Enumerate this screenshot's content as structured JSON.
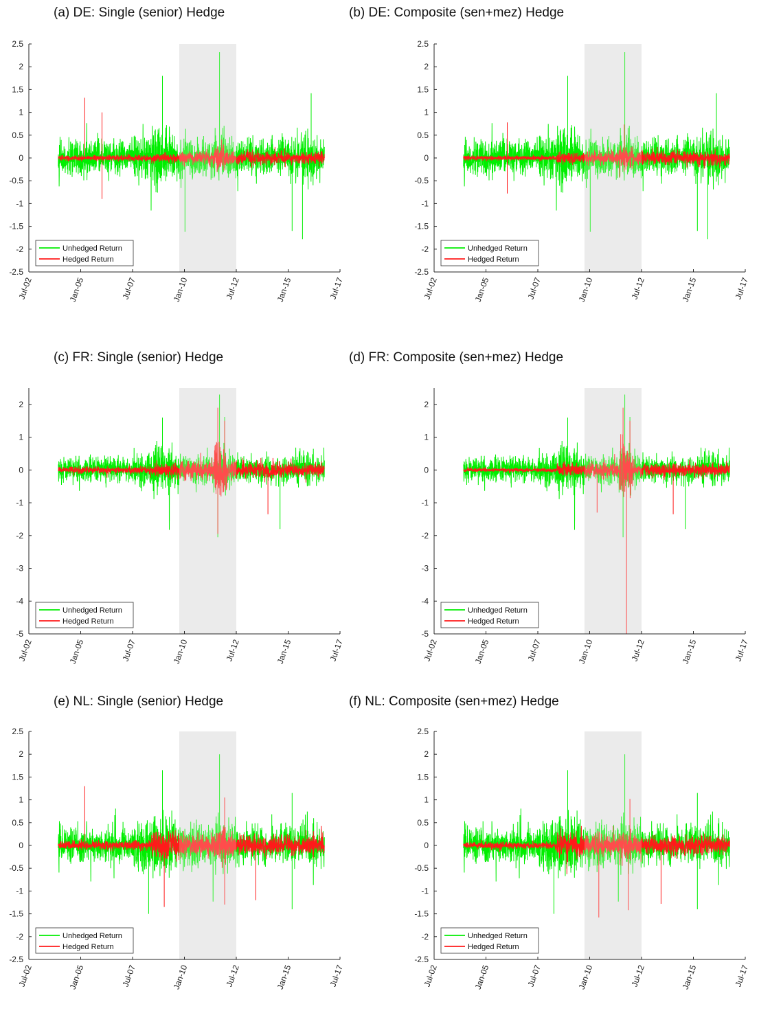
{
  "colors": {
    "unhedged": "#00ee00",
    "hedged": "#ff1a1a",
    "shade": "#e6e6e6",
    "axis": "#262626"
  },
  "x_ticks": [
    "Jul-02",
    "Jan-05",
    "Jul-07",
    "Jan-10",
    "Jul-12",
    "Jan-15",
    "Jul-17"
  ],
  "legend": {
    "unhedged_label": "Unhedged Return",
    "hedged_label": "Hedged Return",
    "placement": "bottom-left"
  },
  "chart_data": [
    {
      "type": "line",
      "title": "(a) DE: Single (senior) Hedge",
      "x_range": [
        "Jul-02",
        "Jul-17"
      ],
      "ylim": [
        -2.5,
        2.5
      ],
      "yticks": [
        "-2.5",
        "-2",
        "-1.5",
        "-1",
        "-0.5",
        "0",
        "0.5",
        "1",
        "1.5",
        "2",
        "2.5"
      ],
      "shaded_period": [
        "Oct-09",
        "Jul-12"
      ],
      "series": [
        {
          "name": "Unhedged Return",
          "peaks": [
            {
              "x": "Sep-11",
              "y": 2.32
            },
            {
              "x": "Dec-08",
              "y": 1.8
            },
            {
              "x": "Feb-16",
              "y": 1.42
            }
          ],
          "troughs": [
            {
              "x": "Jan-10",
              "y": -1.62
            },
            {
              "x": "Sep-15",
              "y": -1.78
            },
            {
              "x": "Mar-15",
              "y": -1.6
            }
          ]
        },
        {
          "name": "Hedged Return",
          "peaks": [
            {
              "x": "Mar-05",
              "y": 1.32
            },
            {
              "x": "Jan-06",
              "y": 1.0
            }
          ],
          "troughs": [
            {
              "x": "Jan-06",
              "y": -0.9
            }
          ]
        }
      ]
    },
    {
      "type": "line",
      "title": "(b) DE: Composite (sen+mez) Hedge",
      "x_range": [
        "Jul-02",
        "Jul-17"
      ],
      "ylim": [
        -2.5,
        2.5
      ],
      "yticks": [
        "-2.5",
        "-2",
        "-1.5",
        "-1",
        "-0.5",
        "0",
        "0.5",
        "1",
        "1.5",
        "2",
        "2.5"
      ],
      "shaded_period": [
        "Oct-09",
        "Jul-12"
      ],
      "series": [
        {
          "name": "Unhedged Return",
          "peaks": [
            {
              "x": "Sep-11",
              "y": 2.32
            },
            {
              "x": "Dec-08",
              "y": 1.8
            },
            {
              "x": "Feb-16",
              "y": 1.42
            }
          ],
          "troughs": [
            {
              "x": "Jan-10",
              "y": -1.62
            },
            {
              "x": "Sep-15",
              "y": -1.78
            },
            {
              "x": "Mar-15",
              "y": -1.6
            }
          ]
        },
        {
          "name": "Hedged Return",
          "peaks": [
            {
              "x": "Jan-06",
              "y": 0.78
            }
          ],
          "troughs": [
            {
              "x": "Jan-06",
              "y": -0.78
            }
          ]
        }
      ]
    },
    {
      "type": "line",
      "title": "(c) FR: Single (senior) Hedge",
      "x_range": [
        "Jul-02",
        "Jul-17"
      ],
      "ylim": [
        -5,
        2.5
      ],
      "yticks": [
        "-5",
        "-4",
        "-3",
        "-2",
        "-1",
        "0",
        "1",
        "2"
      ],
      "shaded_period": [
        "Oct-09",
        "Jul-12"
      ],
      "series": [
        {
          "name": "Unhedged Return",
          "peaks": [
            {
              "x": "Sep-11",
              "y": 2.3
            },
            {
              "x": "Dec-11",
              "y": 1.62
            },
            {
              "x": "Dec-08",
              "y": 1.6
            }
          ],
          "troughs": [
            {
              "x": "Aug-11",
              "y": -2.05
            },
            {
              "x": "Aug-14",
              "y": -1.8
            },
            {
              "x": "Apr-09",
              "y": -1.55
            }
          ]
        },
        {
          "name": "Hedged Return",
          "peaks": [
            {
              "x": "Aug-11",
              "y": 1.9
            },
            {
              "x": "Dec-11",
              "y": 1.5
            }
          ],
          "troughs": [
            {
              "x": "Aug-11",
              "y": -1.95
            },
            {
              "x": "Jan-14",
              "y": -1.35
            }
          ]
        }
      ]
    },
    {
      "type": "line",
      "title": "(d) FR: Composite (sen+mez) Hedge",
      "x_range": [
        "Jul-02",
        "Jul-17"
      ],
      "ylim": [
        -5,
        2.5
      ],
      "yticks": [
        "-5",
        "-4",
        "-3",
        "-2",
        "-1",
        "0",
        "1",
        "2"
      ],
      "shaded_period": [
        "Oct-09",
        "Jul-12"
      ],
      "series": [
        {
          "name": "Unhedged Return",
          "peaks": [
            {
              "x": "Sep-11",
              "y": 2.3
            },
            {
              "x": "Dec-11",
              "y": 1.62
            },
            {
              "x": "Dec-08",
              "y": 1.6
            }
          ],
          "troughs": [
            {
              "x": "Aug-11",
              "y": -2.05
            },
            {
              "x": "Aug-14",
              "y": -1.8
            },
            {
              "x": "Apr-09",
              "y": -1.55
            }
          ]
        },
        {
          "name": "Hedged Return",
          "peaks": [
            {
              "x": "Aug-11",
              "y": 1.9
            },
            {
              "x": "Dec-11",
              "y": 1.5
            }
          ],
          "troughs": [
            {
              "x": "Oct-11",
              "y": -5.0
            },
            {
              "x": "Jan-14",
              "y": -1.35
            },
            {
              "x": "May-10",
              "y": -1.3
            }
          ]
        }
      ]
    },
    {
      "type": "line",
      "title": "(e) NL: Single (senior) Hedge",
      "x_range": [
        "Jul-02",
        "Jul-17"
      ],
      "ylim": [
        -2.5,
        2.5
      ],
      "yticks": [
        "-2.5",
        "-2",
        "-1.5",
        "-1",
        "-0.5",
        "0",
        "0.5",
        "1",
        "1.5",
        "2",
        "2.5"
      ],
      "shaded_period": [
        "Oct-09",
        "Jul-12"
      ],
      "series": [
        {
          "name": "Unhedged Return",
          "peaks": [
            {
              "x": "Sep-11",
              "y": 2.0
            },
            {
              "x": "Dec-08",
              "y": 1.65
            },
            {
              "x": "Mar-15",
              "y": 1.15
            }
          ],
          "troughs": [
            {
              "x": "Apr-08",
              "y": -1.5
            },
            {
              "x": "Mar-15",
              "y": -1.4
            }
          ]
        },
        {
          "name": "Hedged Return",
          "peaks": [
            {
              "x": "Mar-05",
              "y": 1.3
            },
            {
              "x": "Dec-11",
              "y": 1.05
            }
          ],
          "troughs": [
            {
              "x": "Dec-11",
              "y": -1.3
            },
            {
              "x": "Jan-09",
              "y": -1.35
            },
            {
              "x": "Jun-13",
              "y": -1.2
            }
          ]
        }
      ]
    },
    {
      "type": "line",
      "title": "(f) NL: Composite (sen+mez) Hedge",
      "x_range": [
        "Jul-02",
        "Jul-17"
      ],
      "ylim": [
        -2.5,
        2.5
      ],
      "yticks": [
        "-2.5",
        "-2",
        "-1.5",
        "-1",
        "-0.5",
        "0",
        "0.5",
        "1",
        "1.5",
        "2",
        "2.5"
      ],
      "shaded_period": [
        "Oct-09",
        "Jul-12"
      ],
      "series": [
        {
          "name": "Unhedged Return",
          "peaks": [
            {
              "x": "Sep-11",
              "y": 2.0
            },
            {
              "x": "Dec-08",
              "y": 1.65
            },
            {
              "x": "Mar-15",
              "y": 1.15
            }
          ],
          "troughs": [
            {
              "x": "Apr-08",
              "y": -1.5
            },
            {
              "x": "Mar-15",
              "y": -1.4
            }
          ]
        },
        {
          "name": "Hedged Return",
          "peaks": [
            {
              "x": "Dec-11",
              "y": 1.02
            }
          ],
          "troughs": [
            {
              "x": "Jun-10",
              "y": -1.58
            },
            {
              "x": "Nov-11",
              "y": -1.42
            },
            {
              "x": "Jun-13",
              "y": -1.28
            }
          ]
        }
      ]
    }
  ]
}
